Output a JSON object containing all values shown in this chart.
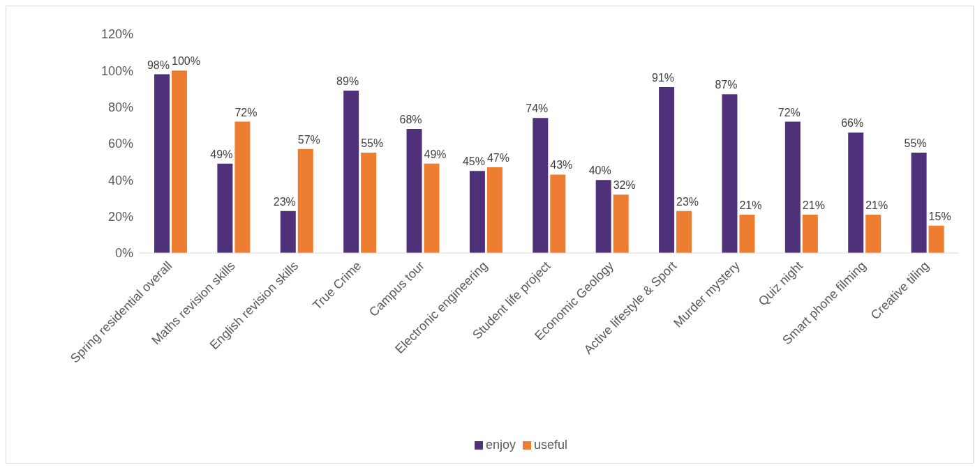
{
  "chart_data": {
    "type": "bar",
    "categories": [
      "Spring residential overall",
      "Maths revision skills",
      "English revision skills",
      "True Crime",
      "Campus tour",
      "Electronic engineering",
      "Student life project",
      "Economic Geology",
      "Active lifestyle & Sport",
      "Murder mystery",
      "Quiz night",
      "Smart phone filming",
      "Creative tiling"
    ],
    "series": [
      {
        "name": "enjoy",
        "color": "#4e3178",
        "values": [
          98,
          49,
          23,
          89,
          68,
          45,
          74,
          40,
          91,
          87,
          72,
          66,
          55
        ],
        "value_labels": [
          "98%",
          "49%",
          "23%",
          "89%",
          "68%",
          "45%",
          "74%",
          "40%",
          "91%",
          "87%",
          "72%",
          "66%",
          "55%"
        ]
      },
      {
        "name": "useful",
        "color": "#ed7d31",
        "values": [
          100,
          72,
          57,
          55,
          49,
          47,
          43,
          32,
          23,
          21,
          21,
          21,
          15
        ],
        "value_labels": [
          "100%",
          "72%",
          "57%",
          "55%",
          "49%",
          "47%",
          "43%",
          "32%",
          "23%",
          "21%",
          "21%",
          "21%",
          "15%"
        ]
      }
    ],
    "ylim": [
      0,
      120
    ],
    "yticks": [
      {
        "value": 0,
        "label": "0%"
      },
      {
        "value": 20,
        "label": "20%"
      },
      {
        "value": 40,
        "label": "40%"
      },
      {
        "value": 60,
        "label": "60%"
      },
      {
        "value": 80,
        "label": "80%"
      },
      {
        "value": 100,
        "label": "100%"
      },
      {
        "value": 120,
        "label": "120%"
      }
    ],
    "grid": false,
    "legend": "bottom"
  }
}
